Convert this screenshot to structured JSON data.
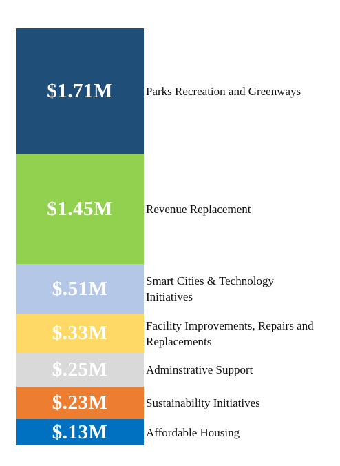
{
  "chart_data": {
    "type": "stacked-bar",
    "series": [
      {
        "name": "Parks Recreation and Greenways",
        "color": "#1f4e79",
        "values": [
          1.71
        ],
        "value_labels": [
          "$1.71M"
        ]
      },
      {
        "name": "Revenue Replacement",
        "color": "#92d050",
        "values": [
          1.45
        ],
        "value_labels": [
          "$1.45M"
        ]
      },
      {
        "name": "Smart Cities & Technology Initiatives",
        "color": "#b4c7e7",
        "values": [
          0.51
        ],
        "value_labels": [
          "$.51M"
        ]
      },
      {
        "name": "Facility Improvements, Repairs and Replacements",
        "color": "#ffd966",
        "values": [
          0.33
        ],
        "value_labels": [
          "$.33M"
        ]
      },
      {
        "name": "Adminstrative Support",
        "color": "#d9d9d9",
        "values": [
          0.25
        ],
        "value_labels": [
          "$.25M"
        ]
      },
      {
        "name": "Sustainability Initiatives",
        "color": "#ed7d31",
        "values": [
          0.23
        ],
        "value_labels": [
          "$.23M"
        ]
      },
      {
        "name": "Affordable Housing",
        "color": "#0070c0",
        "values": [
          0.13
        ],
        "value_labels": [
          "$.13M"
        ]
      }
    ]
  }
}
